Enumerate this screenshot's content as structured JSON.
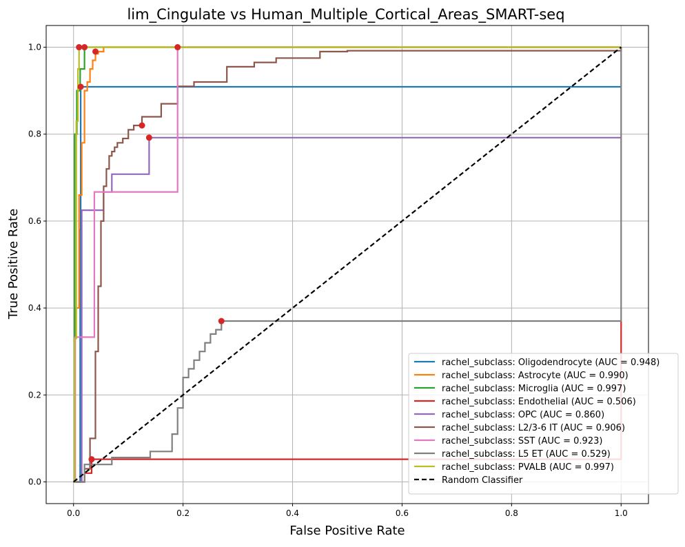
{
  "chart_data": {
    "type": "line",
    "title": "lim_Cingulate vs Human_Multiple_Cortical_Areas_SMART-seq",
    "xlabel": "False Positive Rate",
    "ylabel": "True Positive Rate",
    "xlim": [
      -0.05,
      1.05
    ],
    "ylim": [
      -0.05,
      1.05
    ],
    "xticks": [
      "0.0",
      "0.2",
      "0.4",
      "0.6",
      "0.8",
      "1.0"
    ],
    "yticks": [
      "0.0",
      "0.2",
      "0.4",
      "0.6",
      "0.8",
      "1.0"
    ],
    "xtick_values": [
      0,
      0.2,
      0.4,
      0.6,
      0.8,
      1.0
    ],
    "ytick_values": [
      0,
      0.2,
      0.4,
      0.6,
      0.8,
      1.0
    ],
    "grid": true,
    "legend_position": "lower-right",
    "marker_color": "#d62728",
    "series": [
      {
        "name": "rachel_subclass: Oligodendrocyte (AUC = 0.948)",
        "color": "#1f77b4",
        "x": [
          0,
          0.012,
          0.012,
          0.013,
          0.013,
          1.0,
          1.0
        ],
        "y": [
          0,
          0,
          0.58,
          0.58,
          0.909,
          0.909,
          0.909
        ],
        "marker": [
          0.013,
          0.909
        ]
      },
      {
        "name": "rachel_subclass: Astrocyte (AUC = 0.990)",
        "color": "#ff7f0e",
        "x": [
          0,
          0.003,
          0.003,
          0.01,
          0.01,
          0.015,
          0.015,
          0.02,
          0.02,
          0.025,
          0.025,
          0.03,
          0.03,
          0.035,
          0.035,
          0.04,
          0.04,
          0.045,
          0.045,
          0.055,
          0.055,
          1.0,
          1.0
        ],
        "y": [
          0,
          0,
          0.4,
          0.4,
          0.66,
          0.66,
          0.78,
          0.78,
          0.9,
          0.9,
          0.92,
          0.92,
          0.95,
          0.95,
          0.97,
          0.97,
          0.985,
          0.985,
          0.99,
          0.99,
          1.0,
          1.0,
          1.0
        ],
        "marker": [
          0.04,
          0.99
        ]
      },
      {
        "name": "rachel_subclass: Microglia (AUC = 0.997)",
        "color": "#2ca02c",
        "x": [
          0,
          0.002,
          0.002,
          0.006,
          0.006,
          0.012,
          0.012,
          0.02,
          0.02,
          1.0,
          1.0
        ],
        "y": [
          0,
          0,
          0.8,
          0.8,
          0.9,
          0.9,
          0.95,
          0.95,
          1.0,
          1.0,
          1.0
        ],
        "marker": [
          0.02,
          1.0
        ]
      },
      {
        "name": "rachel_subclass: Endothelial (AUC = 0.506)",
        "color": "#d62728",
        "x": [
          0,
          0.02,
          0.02,
          0.033,
          0.033,
          1.0,
          1.0
        ],
        "y": [
          0,
          0,
          0.02,
          0.02,
          0.052,
          0.052,
          0.37
        ],
        "marker": [
          0.033,
          0.052
        ]
      },
      {
        "name": "rachel_subclass: OPC (AUC = 0.860)",
        "color": "#9467bd",
        "x": [
          0,
          0.015,
          0.015,
          0.055,
          0.055,
          0.07,
          0.07,
          0.138,
          0.138,
          1.0,
          1.0
        ],
        "y": [
          0,
          0,
          0.625,
          0.625,
          0.667,
          0.667,
          0.708,
          0.708,
          0.792,
          0.792,
          0.792
        ],
        "marker": [
          0.138,
          0.792
        ]
      },
      {
        "name": "rachel_subclass: L2/3-6 IT (AUC = 0.906)",
        "color": "#8c564b",
        "x": [
          0,
          0.02,
          0.02,
          0.03,
          0.03,
          0.04,
          0.04,
          0.045,
          0.045,
          0.05,
          0.05,
          0.055,
          0.055,
          0.06,
          0.06,
          0.065,
          0.065,
          0.07,
          0.07,
          0.075,
          0.075,
          0.08,
          0.08,
          0.09,
          0.09,
          0.1,
          0.1,
          0.11,
          0.11,
          0.125,
          0.125,
          0.16,
          0.16,
          0.19,
          0.19,
          0.22,
          0.22,
          0.28,
          0.28,
          0.33,
          0.33,
          0.37,
          0.37,
          0.45,
          0.45,
          0.5,
          0.5,
          1.0,
          1.0
        ],
        "y": [
          0,
          0,
          0.03,
          0.03,
          0.1,
          0.1,
          0.3,
          0.3,
          0.45,
          0.45,
          0.6,
          0.6,
          0.68,
          0.68,
          0.72,
          0.72,
          0.75,
          0.75,
          0.76,
          0.76,
          0.77,
          0.77,
          0.78,
          0.78,
          0.79,
          0.79,
          0.81,
          0.81,
          0.82,
          0.82,
          0.84,
          0.84,
          0.87,
          0.87,
          0.91,
          0.91,
          0.92,
          0.92,
          0.955,
          0.955,
          0.965,
          0.965,
          0.975,
          0.975,
          0.99,
          0.99,
          0.992,
          0.992,
          1.0
        ],
        "marker": [
          0.125,
          0.82
        ]
      },
      {
        "name": "rachel_subclass: SST (AUC = 0.923)",
        "color": "#e377c2",
        "x": [
          0,
          0.003,
          0.003,
          0.038,
          0.038,
          0.19,
          0.19,
          1.0
        ],
        "y": [
          0,
          0,
          0.333,
          0.333,
          0.667,
          0.667,
          1.0,
          1.0
        ],
        "marker": [
          0.19,
          1.0
        ]
      },
      {
        "name": "rachel_subclass: L5 ET (AUC = 0.529)",
        "color": "#7f7f7f",
        "x": [
          0,
          0.02,
          0.02,
          0.07,
          0.07,
          0.14,
          0.14,
          0.18,
          0.18,
          0.19,
          0.19,
          0.2,
          0.2,
          0.21,
          0.21,
          0.22,
          0.22,
          0.23,
          0.23,
          0.24,
          0.24,
          0.25,
          0.25,
          0.26,
          0.26,
          0.27,
          0.27,
          1.0,
          1.0
        ],
        "y": [
          0,
          0,
          0.04,
          0.04,
          0.056,
          0.056,
          0.07,
          0.07,
          0.11,
          0.11,
          0.17,
          0.17,
          0.24,
          0.24,
          0.26,
          0.26,
          0.28,
          0.28,
          0.3,
          0.3,
          0.32,
          0.32,
          0.34,
          0.34,
          0.35,
          0.35,
          0.37,
          0.37,
          1.0
        ],
        "marker": [
          0.27,
          0.37
        ]
      },
      {
        "name": "rachel_subclass: PVALB (AUC = 0.997)",
        "color": "#bcbd22",
        "x": [
          0,
          0.002,
          0.002,
          0.005,
          0.005,
          0.008,
          0.008,
          0.01,
          0.01,
          1.0,
          1.0
        ],
        "y": [
          0,
          0,
          0.33,
          0.33,
          0.83,
          0.83,
          0.95,
          0.95,
          1.0,
          1.0,
          1.0
        ],
        "marker": [
          0.01,
          1.0
        ]
      },
      {
        "name": "Random Classifier",
        "color": "#000000",
        "dashed": true,
        "x": [
          0,
          1
        ],
        "y": [
          0,
          1
        ]
      }
    ]
  }
}
